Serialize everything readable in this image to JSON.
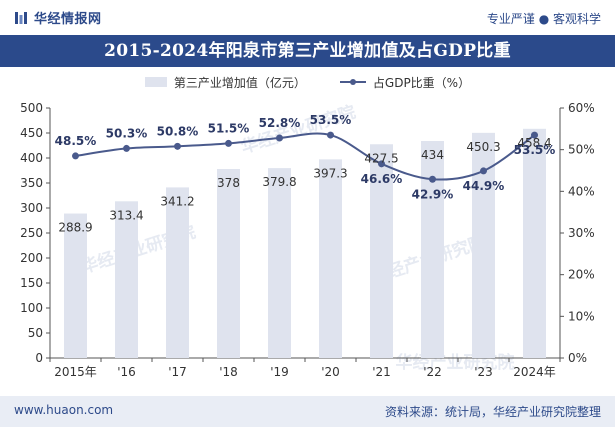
{
  "header": {
    "brand": "华经情报网",
    "slogan": "专业严谨 ● 客观科学"
  },
  "footer": {
    "website": "www.huaon.com",
    "source": "资料来源：统计局，华经产业研究院整理"
  },
  "colors": {
    "title_bg": "#2b4a8b",
    "bar": "#dfe3ee",
    "line": "#4a5a8c",
    "brand": "#2d4a8a"
  },
  "chart_data": {
    "type": "bar",
    "title": "2015-2024年阳泉市第三产业增加值及占GDP比重",
    "categories": [
      "2015年",
      "'16",
      "'17",
      "'18",
      "'19",
      "'20",
      "'21",
      "'22",
      "'23",
      "2024年"
    ],
    "series": [
      {
        "name": "第三产业增加值（亿元）",
        "type": "bar",
        "axis": "left",
        "values": [
          288.9,
          313.4,
          341.2,
          378,
          379.8,
          397.3,
          427.5,
          434,
          450.3,
          458.4
        ],
        "labels": [
          "288.9",
          "313.4",
          "341.2",
          "378",
          "379.8",
          "397.3",
          "427.5",
          "434",
          "450.3",
          "458.4"
        ]
      },
      {
        "name": "占GDP比重（%）",
        "type": "line",
        "axis": "right",
        "values": [
          48.5,
          50.3,
          50.8,
          51.5,
          52.8,
          53.5,
          46.6,
          42.9,
          44.9,
          53.5
        ],
        "labels": [
          "48.5%",
          "50.3%",
          "50.8%",
          "51.5%",
          "52.8%",
          "53.5%",
          "46.6%",
          "42.9%",
          "44.9%",
          "53.5%"
        ]
      }
    ],
    "y_left": {
      "min": 0,
      "max": 500,
      "ticks": [
        "0",
        "50",
        "100",
        "150",
        "200",
        "250",
        "300",
        "350",
        "400",
        "450",
        "500"
      ]
    },
    "y_right": {
      "min": 0,
      "max": 60,
      "ticks": [
        "0%",
        "10%",
        "20%",
        "30%",
        "40%",
        "50%",
        "60%"
      ]
    },
    "legend": "top-center",
    "grid": false
  },
  "watermark": "华经产业研究院"
}
